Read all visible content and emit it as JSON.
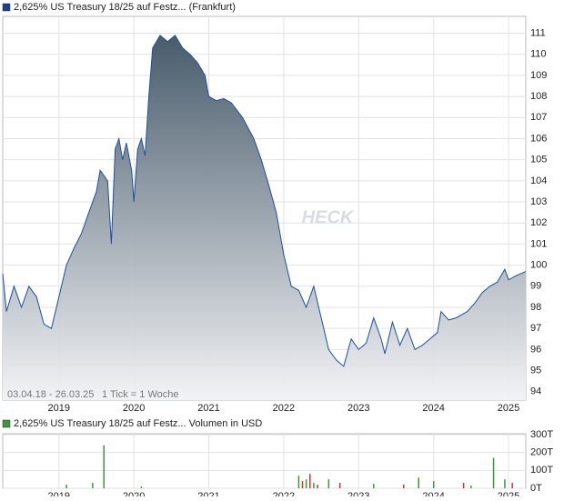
{
  "chart_data": [
    {
      "type": "area",
      "title": "2,625% US Treasury 18/25 auf Festz... (Frankfurt)",
      "legend_color": "#1c3f94",
      "color": "#1f4fa0",
      "fill_top": "#3f5364",
      "fill_bottom": "#f2f3f5",
      "date_range": "03.04.18 - 26.03.25",
      "tick_info": "1 Tick = 1 Woche",
      "watermark": "HECK",
      "x": [
        2018.25,
        2018.3,
        2018.4,
        2018.5,
        2018.6,
        2018.7,
        2018.8,
        2018.9,
        2019.0,
        2019.1,
        2019.2,
        2019.3,
        2019.4,
        2019.5,
        2019.55,
        2019.65,
        2019.7,
        2019.75,
        2019.8,
        2019.85,
        2019.9,
        2019.97,
        2020.0,
        2020.05,
        2020.1,
        2020.15,
        2020.2,
        2020.25,
        2020.35,
        2020.45,
        2020.55,
        2020.65,
        2020.75,
        2020.85,
        2020.95,
        2021.0,
        2021.1,
        2021.2,
        2021.3,
        2021.45,
        2021.6,
        2021.7,
        2021.8,
        2021.9,
        2022.0,
        2022.1,
        2022.2,
        2022.3,
        2022.4,
        2022.5,
        2022.6,
        2022.7,
        2022.8,
        2022.9,
        2023.0,
        2023.1,
        2023.2,
        2023.3,
        2023.35,
        2023.45,
        2023.55,
        2023.65,
        2023.75,
        2023.85,
        2023.95,
        2024.05,
        2024.1,
        2024.2,
        2024.3,
        2024.45,
        2024.55,
        2024.65,
        2024.75,
        2024.85,
        2024.95,
        2025.0,
        2025.1,
        2025.23
      ],
      "values": [
        99.6,
        97.8,
        99.0,
        98.0,
        99.0,
        98.5,
        97.2,
        97.0,
        98.5,
        100.0,
        100.8,
        101.5,
        102.5,
        103.5,
        104.5,
        104.0,
        101.0,
        105.5,
        106.0,
        105.0,
        105.8,
        104.5,
        103.0,
        105.5,
        106.0,
        105.2,
        108.0,
        110.3,
        110.9,
        110.6,
        110.9,
        110.3,
        110.0,
        109.6,
        109.0,
        108.0,
        107.8,
        107.9,
        107.7,
        107.0,
        106.0,
        105.0,
        103.8,
        102.5,
        100.5,
        99.0,
        98.8,
        98.0,
        99.0,
        97.5,
        96.0,
        95.5,
        95.2,
        96.5,
        96.0,
        96.3,
        97.5,
        96.5,
        95.8,
        97.3,
        96.2,
        97.0,
        96.0,
        96.2,
        96.5,
        96.8,
        97.8,
        97.4,
        97.5,
        97.8,
        98.2,
        98.7,
        99.0,
        99.2,
        99.8,
        99.3,
        99.5,
        99.7
      ],
      "xlim": [
        2018.25,
        2025.23
      ],
      "xticks": [
        2019,
        2020,
        2021,
        2022,
        2023,
        2024,
        2025
      ],
      "ylim": [
        93.6,
        111.8
      ],
      "yticks": [
        94,
        95,
        96,
        97,
        98,
        99,
        100,
        101,
        102,
        103,
        104,
        105,
        106,
        107,
        108,
        109,
        110,
        111
      ],
      "grid": true
    },
    {
      "type": "bar",
      "title": "2,625% US Treasury 18/25 auf Festz... Volumen in USD",
      "legend_color": "#3a9a3a",
      "x": [
        2019.1,
        2019.45,
        2019.6,
        2020.1,
        2022.2,
        2022.25,
        2022.3,
        2022.35,
        2022.4,
        2022.45,
        2022.6,
        2022.75,
        2023.2,
        2023.6,
        2023.8,
        2024.0,
        2024.4,
        2024.5,
        2024.8,
        2024.95,
        2025.05
      ],
      "values": [
        20,
        30,
        240,
        10,
        70,
        40,
        50,
        80,
        30,
        20,
        50,
        30,
        25,
        20,
        60,
        40,
        30,
        15,
        170,
        50,
        30
      ],
      "colors": [
        "#3a9a3a",
        "#3a9a3a",
        "#3a9a3a",
        "#3a9a3a",
        "#3a9a3a",
        "#d03030",
        "#3a9a3a",
        "#d03030",
        "#3a9a3a",
        "#d03030",
        "#3a9a3a",
        "#d03030",
        "#3a9a3a",
        "#d03030",
        "#3a9a3a",
        "#3a9a3a",
        "#d03030",
        "#3a9a3a",
        "#3a9a3a",
        "#3a9a3a",
        "#d03030"
      ],
      "xlim": [
        2018.25,
        2025.23
      ],
      "xticks": [
        2019,
        2020,
        2021,
        2022,
        2023,
        2024,
        2025
      ],
      "ylim": [
        0,
        305
      ],
      "yticks": [
        {
          "value": 0,
          "label": "0T"
        },
        {
          "value": 100,
          "label": "100T"
        },
        {
          "value": 200,
          "label": "200T"
        },
        {
          "value": 300,
          "label": "300T"
        }
      ],
      "grid": true
    }
  ]
}
